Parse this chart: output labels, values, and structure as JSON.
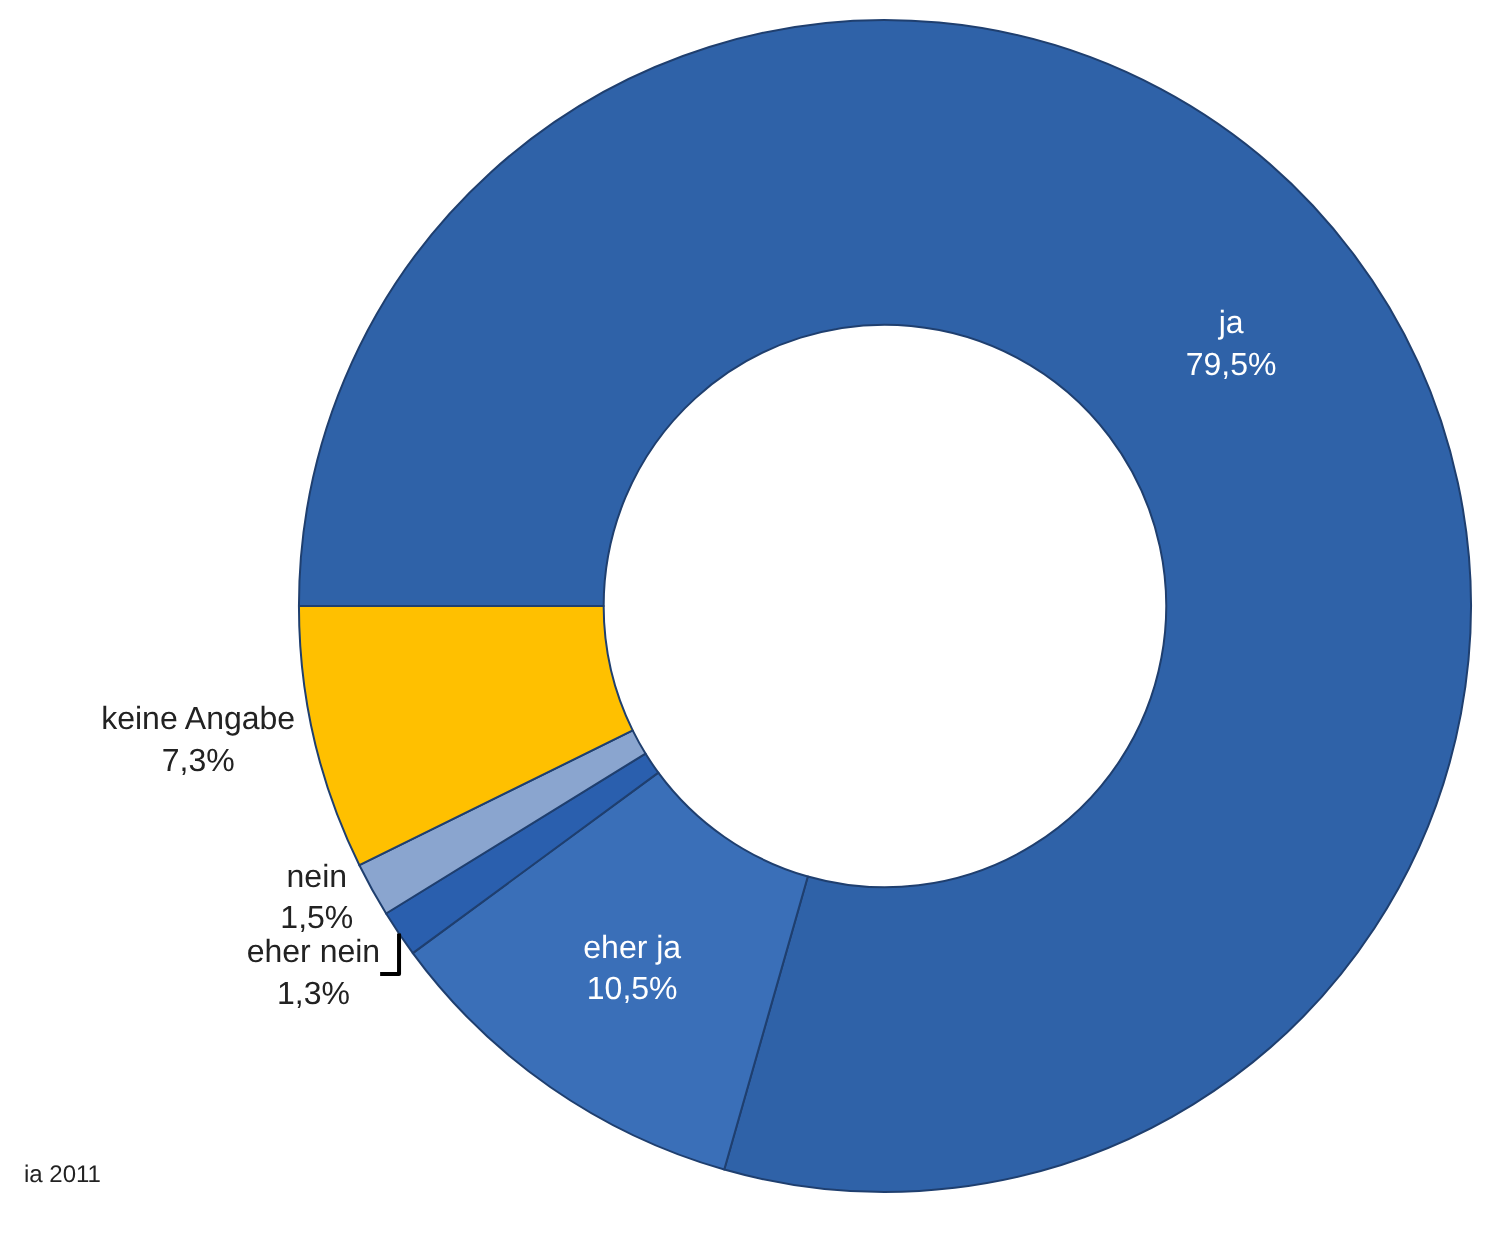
{
  "chart_data": {
    "type": "donut",
    "categories": [
      "ja",
      "eher ja",
      "eher nein",
      "nein",
      "keine Angabe"
    ],
    "values": [
      79.5,
      10.5,
      1.3,
      1.5,
      7.3
    ],
    "value_labels": [
      "79,5%",
      "10,5%",
      "1,3%",
      "1,5%",
      "7,3%"
    ],
    "colors": [
      "#2f62a8",
      "#3a6fb8",
      "#2a5fae",
      "#8aa5cf",
      "#ffc000"
    ],
    "annotations": [
      "ia 2011"
    ]
  }
}
